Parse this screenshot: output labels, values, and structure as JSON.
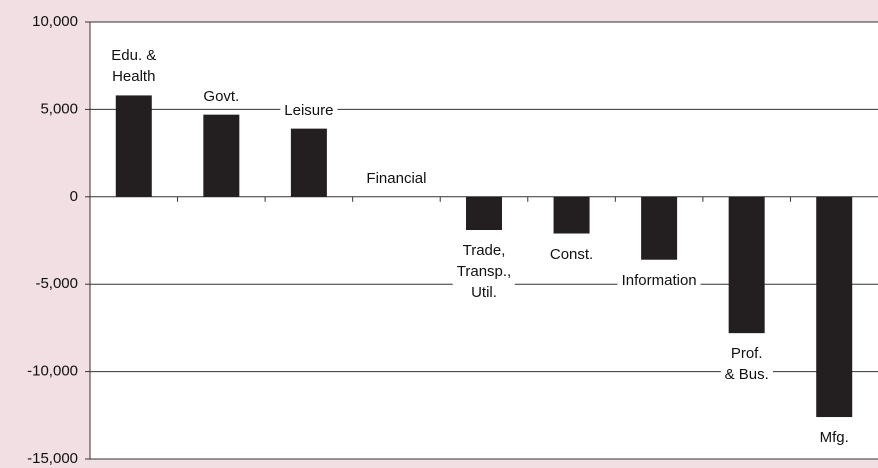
{
  "chart_data": {
    "type": "bar",
    "categories": [
      "Edu. &\nHealth",
      "Govt.",
      "Leisure",
      "Financial",
      "Trade,\nTransp.,\nUtil.",
      "Const.",
      "Information",
      "Prof.\n& Bus.",
      "Mfg."
    ],
    "values": [
      5800,
      4700,
      3900,
      0,
      -1900,
      -2100,
      -3600,
      -7800,
      -12600
    ],
    "color": "#231f20",
    "ylim": [
      -15000,
      10000
    ],
    "yticks": [
      {
        "value": -15000,
        "label": "-15,000"
      },
      {
        "value": -10000,
        "label": "-10,000"
      },
      {
        "value": -5000,
        "label": "-5,000"
      },
      0,
      {
        "value": 5000,
        "label": "5,000"
      },
      {
        "value": 10000,
        "label": "10,000"
      }
    ],
    "grid": true
  }
}
